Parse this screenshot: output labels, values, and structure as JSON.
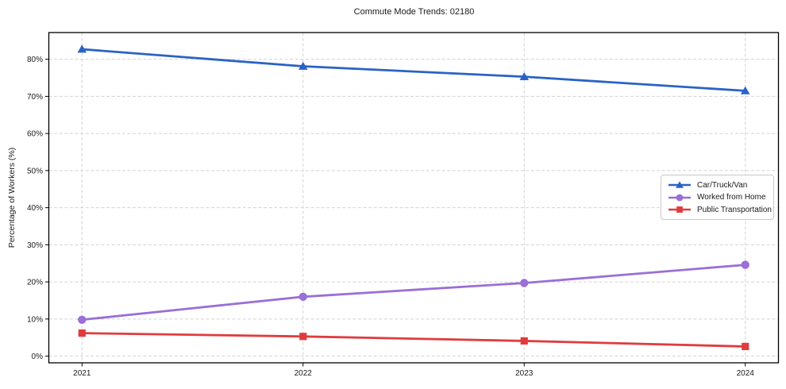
{
  "chart_data": {
    "type": "line",
    "title": "Commute Mode Trends: 02180",
    "xlabel": "",
    "ylabel": "Percentage of Workers (%)",
    "x": [
      2021,
      2022,
      2023,
      2024
    ],
    "x_tick_labels": [
      "2021",
      "2022",
      "2023",
      "2024"
    ],
    "series": [
      {
        "name": "Car/Truck/Van",
        "color": "#2a63c6",
        "marker": "triangle",
        "values": [
          82.7,
          78.1,
          75.3,
          71.5
        ]
      },
      {
        "name": "Worked from Home",
        "color": "#9a6fd6",
        "marker": "circle",
        "values": [
          9.8,
          16.0,
          19.7,
          24.6
        ]
      },
      {
        "name": "Public Transportation",
        "color": "#e03c3e",
        "marker": "square",
        "values": [
          6.2,
          5.3,
          4.1,
          2.6
        ]
      }
    ],
    "xlim": [
      2020.85,
      2024.15
    ],
    "ylim": [
      -1.8,
      87.2
    ],
    "yticks": [
      0,
      10,
      20,
      30,
      40,
      50,
      60,
      70,
      80
    ],
    "ytick_labels": [
      "0%",
      "10%",
      "20%",
      "30%",
      "40%",
      "50%",
      "60%",
      "70%",
      "80%"
    ],
    "grid": {
      "on": true,
      "style": "dashed",
      "color": "#d2d2d2"
    },
    "legend": {
      "position": "right-middle",
      "border_color": "#c9c9c9"
    },
    "frame_color": "#000000",
    "text_color": "#1a1a1a"
  }
}
